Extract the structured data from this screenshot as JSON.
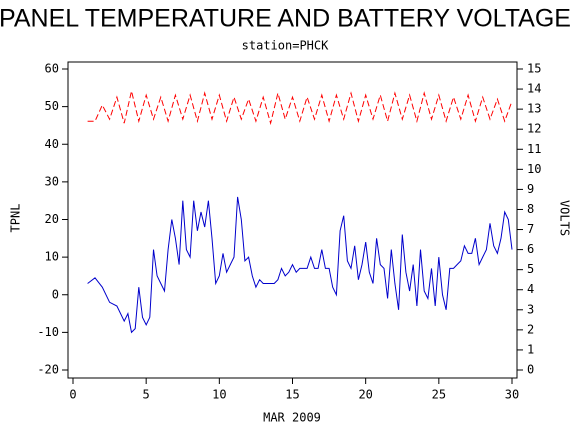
{
  "chart_data": {
    "type": "line",
    "title": "PANEL TEMPERATURE AND BATTERY VOLTAGE",
    "subtitle": "station=PHCK",
    "xlabel": "MAR 2009",
    "ylabel": "TPNL",
    "y2label": "VOLTS",
    "xlim": [
      0,
      30
    ],
    "xticks": [
      0,
      5,
      10,
      15,
      20,
      25,
      30
    ],
    "ylim": [
      -20,
      60
    ],
    "yticks": [
      -20,
      -10,
      0,
      10,
      20,
      30,
      40,
      50,
      60
    ],
    "y2lim": [
      0,
      15
    ],
    "y2ticks": [
      0,
      1,
      2,
      3,
      4,
      5,
      6,
      7,
      8,
      9,
      10,
      11,
      12,
      13,
      14,
      15
    ],
    "series": [
      {
        "name": "TPNL",
        "color": "#0000cc",
        "line_style": "solid",
        "x": [
          1,
          1.5,
          2,
          2.5,
          3,
          3.5,
          3.75,
          4,
          4.25,
          4.5,
          4.75,
          5,
          5.25,
          5.5,
          5.75,
          6,
          6.25,
          6.5,
          6.75,
          7,
          7.25,
          7.5,
          7.75,
          8,
          8.25,
          8.5,
          8.75,
          9,
          9.25,
          9.5,
          9.75,
          10,
          10.25,
          10.5,
          10.75,
          11,
          11.25,
          11.5,
          11.75,
          12,
          12.25,
          12.5,
          12.75,
          13,
          13.25,
          13.5,
          13.75,
          14,
          14.25,
          14.5,
          14.75,
          15,
          15.25,
          15.5,
          15.75,
          16,
          16.25,
          16.5,
          16.75,
          17,
          17.25,
          17.5,
          17.75,
          18,
          18.25,
          18.5,
          18.75,
          19,
          19.25,
          19.5,
          19.75,
          20,
          20.25,
          20.5,
          20.75,
          21,
          21.25,
          21.5,
          21.75,
          22,
          22.25,
          22.5,
          22.75,
          23,
          23.25,
          23.5,
          23.75,
          24,
          24.25,
          24.5,
          24.75,
          25,
          25.25,
          25.5,
          25.75,
          26,
          26.25,
          26.5,
          26.75,
          27,
          27.25,
          27.5,
          27.75,
          28,
          28.25,
          28.5,
          28.75,
          29,
          29.25,
          29.5,
          29.75,
          30
        ],
        "values": [
          3,
          4.5,
          2,
          -2,
          -3,
          -7,
          -5,
          -10,
          -9,
          2,
          -6,
          -8,
          -6,
          12,
          5,
          3,
          1,
          12,
          20,
          15,
          8,
          25,
          12,
          10,
          25,
          17,
          22,
          18,
          25,
          15,
          3,
          5,
          11,
          6,
          8,
          10,
          26,
          20,
          9,
          10,
          5,
          2,
          4,
          3,
          3,
          3,
          3,
          4,
          7,
          5,
          6,
          8,
          6,
          7,
          7,
          7,
          10,
          7,
          7,
          12,
          7,
          7,
          2,
          0,
          17,
          21,
          9,
          7,
          13,
          4,
          8,
          14,
          6,
          3,
          15,
          8,
          7,
          -1,
          12,
          3,
          -4,
          16,
          6,
          1,
          8,
          -3,
          12,
          1,
          -1,
          7,
          -3,
          10,
          0,
          -4,
          7,
          7,
          8,
          9,
          13,
          11,
          11,
          15,
          8,
          10,
          12,
          19,
          13,
          11,
          15,
          22,
          20,
          12
        ]
      },
      {
        "name": "VOLTS",
        "color": "#ff0000",
        "line_style": "dashed",
        "axis": "y2",
        "x": [
          1,
          1.5,
          2,
          2.5,
          3,
          3.5,
          4,
          4.5,
          5,
          5.5,
          6,
          6.5,
          7,
          7.5,
          8,
          8.5,
          9,
          9.5,
          10,
          10.5,
          11,
          11.5,
          12,
          12.5,
          13,
          13.5,
          14,
          14.5,
          15,
          15.5,
          16,
          16.5,
          17,
          17.5,
          18,
          18.5,
          19,
          19.5,
          20,
          20.5,
          21,
          21.5,
          22,
          22.5,
          23,
          23.5,
          24,
          24.5,
          25,
          25.5,
          26,
          26.5,
          27,
          27.5,
          28,
          28.5,
          29,
          29.5,
          30
        ],
        "values": [
          12.4,
          12.4,
          13.2,
          12.5,
          13.6,
          12.3,
          13.9,
          12.4,
          13.7,
          12.5,
          13.6,
          12.4,
          13.7,
          12.5,
          13.7,
          12.4,
          13.8,
          12.5,
          13.7,
          12.4,
          13.6,
          12.5,
          13.5,
          12.4,
          13.6,
          12.3,
          13.8,
          12.5,
          13.6,
          12.4,
          13.6,
          12.5,
          13.7,
          12.4,
          13.7,
          12.5,
          13.8,
          12.4,
          13.7,
          12.5,
          13.7,
          12.4,
          13.8,
          12.5,
          13.7,
          12.4,
          13.8,
          12.5,
          13.7,
          12.4,
          13.6,
          12.5,
          13.7,
          12.4,
          13.6,
          12.5,
          13.5,
          12.4,
          13.4
        ]
      }
    ]
  }
}
